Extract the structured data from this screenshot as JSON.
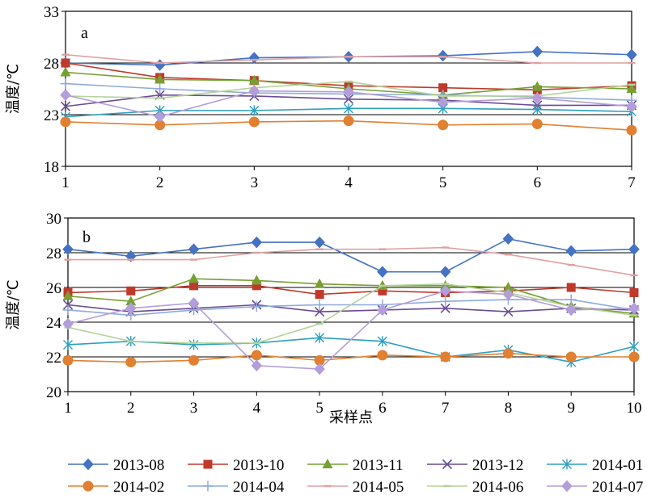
{
  "chart_data": [
    {
      "type": "line",
      "panel_label": "a",
      "ylabel": "温度/℃",
      "xlabel": "",
      "ylim": [
        18,
        33
      ],
      "yticks": [
        18,
        23,
        28,
        33
      ],
      "ytick_labels": [
        "18",
        "23",
        "28",
        "33"
      ],
      "xlim": [
        1,
        7
      ],
      "x": [
        1,
        2,
        3,
        4,
        5,
        6,
        7
      ],
      "x_tick_labels": [
        "1",
        "2",
        "3",
        "4",
        "5",
        "6",
        "7"
      ],
      "grid": "horizontal",
      "series": [
        {
          "name": "2013-08",
          "color": "#4472C4",
          "marker": "diamond",
          "values": [
            28.0,
            27.8,
            28.5,
            28.6,
            28.7,
            29.1,
            28.8
          ]
        },
        {
          "name": "2013-10",
          "color": "#C0392B",
          "marker": "square",
          "values": [
            28.0,
            26.6,
            26.3,
            25.8,
            25.6,
            25.4,
            25.8
          ]
        },
        {
          "name": "2013-11",
          "color": "#77A033",
          "marker": "triangle",
          "values": [
            27.1,
            26.4,
            26.3,
            25.5,
            24.9,
            25.7,
            25.5
          ]
        },
        {
          "name": "2013-12",
          "color": "#6A4C93",
          "marker": "x",
          "values": [
            23.8,
            24.9,
            24.8,
            24.5,
            24.4,
            23.9,
            23.9
          ]
        },
        {
          "name": "2014-01",
          "color": "#2E9FBF",
          "marker": "star",
          "values": [
            22.8,
            23.4,
            23.4,
            23.6,
            23.6,
            23.5,
            23.3
          ]
        },
        {
          "name": "2014-02",
          "color": "#E08030",
          "marker": "circle",
          "values": [
            22.3,
            22.0,
            22.3,
            22.4,
            22.0,
            22.1,
            21.5
          ]
        },
        {
          "name": "2014-04",
          "color": "#8FAADC",
          "marker": "plus",
          "values": [
            26.0,
            25.5,
            25.1,
            25.0,
            24.9,
            24.7,
            24.4
          ]
        },
        {
          "name": "2014-05",
          "color": "#E0A0A0",
          "marker": "dash",
          "values": [
            28.8,
            28.0,
            28.3,
            28.6,
            28.6,
            28.0,
            28.0
          ]
        },
        {
          "name": "2014-06",
          "color": "#B5D39A",
          "marker": "dash",
          "values": [
            24.8,
            24.6,
            25.6,
            26.2,
            24.8,
            24.8,
            25.9
          ]
        },
        {
          "name": "2014-07",
          "color": "#B39DDB",
          "marker": "diamond",
          "values": [
            24.9,
            22.8,
            25.3,
            25.2,
            24.2,
            24.6,
            23.8
          ]
        }
      ]
    },
    {
      "type": "line",
      "panel_label": "b",
      "ylabel": "温度/℃",
      "xlabel": "采样点",
      "ylim": [
        20,
        30
      ],
      "yticks": [
        20,
        22,
        24,
        26,
        28,
        30
      ],
      "ytick_labels": [
        "20",
        "22",
        "24",
        "26",
        "28",
        "30"
      ],
      "xlim": [
        1,
        10
      ],
      "x": [
        1,
        2,
        3,
        4,
        5,
        6,
        7,
        8,
        9,
        10
      ],
      "x_tick_labels": [
        "1",
        "2",
        "3",
        "4",
        "5",
        "6",
        "7",
        "8",
        "9",
        "10"
      ],
      "grid": "horizontal",
      "series": [
        {
          "name": "2013-08",
          "color": "#4472C4",
          "marker": "diamond",
          "values": [
            28.2,
            27.8,
            28.2,
            28.6,
            28.6,
            26.9,
            26.9,
            28.8,
            28.1,
            28.2
          ]
        },
        {
          "name": "2013-10",
          "color": "#C0392B",
          "marker": "square",
          "values": [
            25.7,
            25.8,
            26.1,
            26.1,
            25.6,
            25.8,
            25.7,
            25.8,
            26.0,
            25.7
          ]
        },
        {
          "name": "2013-11",
          "color": "#77A033",
          "marker": "triangle",
          "values": [
            25.5,
            25.2,
            26.5,
            26.4,
            26.2,
            26.1,
            26.1,
            26.0,
            24.9,
            24.5
          ]
        },
        {
          "name": "2013-12",
          "color": "#6A4C93",
          "marker": "x",
          "values": [
            25.0,
            24.6,
            24.8,
            25.0,
            24.6,
            24.7,
            24.8,
            24.6,
            24.8,
            24.7
          ]
        },
        {
          "name": "2014-01",
          "color": "#2E9FBF",
          "marker": "star",
          "values": [
            22.7,
            22.9,
            22.7,
            22.8,
            23.1,
            22.9,
            22.0,
            22.4,
            21.7,
            22.6
          ]
        },
        {
          "name": "2014-02",
          "color": "#E08030",
          "marker": "circle",
          "values": [
            21.8,
            21.7,
            21.8,
            22.1,
            21.8,
            22.1,
            22.0,
            22.2,
            22.0,
            22.0
          ]
        },
        {
          "name": "2014-04",
          "color": "#8FAADC",
          "marker": "plus",
          "values": [
            24.7,
            24.4,
            24.7,
            24.9,
            25.0,
            25.0,
            25.2,
            25.3,
            25.3,
            24.7
          ]
        },
        {
          "name": "2014-05",
          "color": "#E0A0A0",
          "marker": "dash",
          "values": [
            27.6,
            27.6,
            27.6,
            28.0,
            28.2,
            28.2,
            28.3,
            27.9,
            27.3,
            26.7
          ]
        },
        {
          "name": "2014-06",
          "color": "#B5D39A",
          "marker": "dash",
          "values": [
            23.7,
            22.9,
            22.8,
            22.8,
            23.9,
            26.1,
            26.2,
            25.7,
            24.9,
            24.4
          ]
        },
        {
          "name": "2014-07",
          "color": "#B39DDB",
          "marker": "diamond",
          "values": [
            23.9,
            24.8,
            25.1,
            21.5,
            21.3,
            24.7,
            25.8,
            25.6,
            24.7,
            24.8
          ]
        }
      ]
    }
  ],
  "legend": {
    "placement": "bottom",
    "entries": [
      "2013-08",
      "2013-10",
      "2013-11",
      "2013-12",
      "2014-01",
      "2014-02",
      "2014-04",
      "2014-05",
      "2014-06",
      "2014-07"
    ]
  }
}
